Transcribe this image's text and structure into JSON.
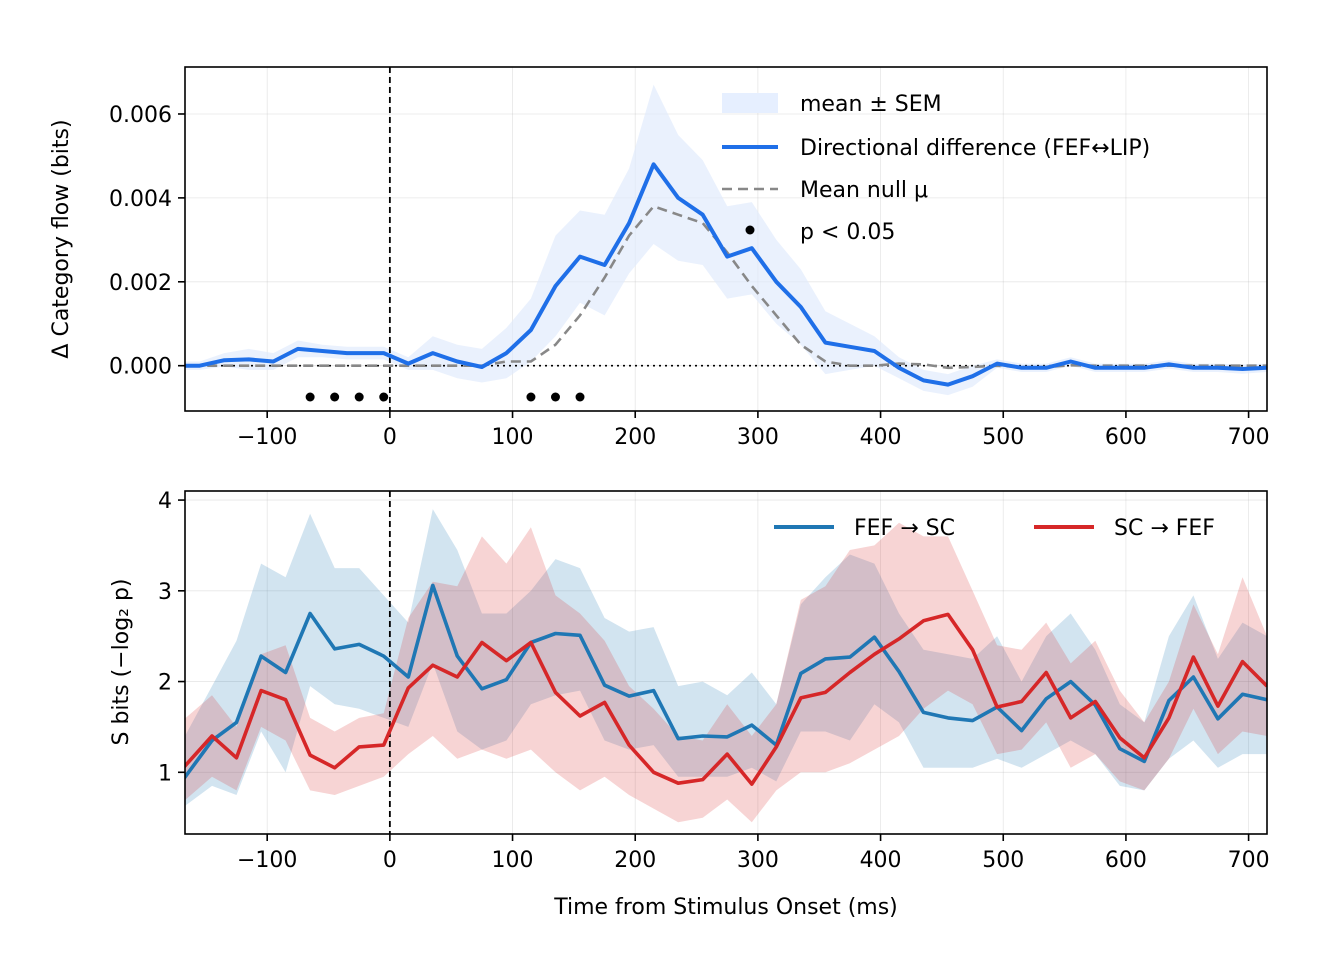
{
  "chart_data": [
    {
      "type": "line",
      "panel": "top",
      "ylabel": "Δ Category flow (bits)",
      "xlabel": "",
      "xlim": [
        -167,
        715
      ],
      "ylim": [
        -0.00108,
        0.00712
      ],
      "xticks": [
        -100,
        0,
        100,
        200,
        300,
        400,
        500,
        600,
        700
      ],
      "xtick_labels": [
        "−100",
        "0",
        "100",
        "200",
        "300",
        "400",
        "500",
        "600",
        "700"
      ],
      "yticks": [
        0,
        0.002,
        0.004,
        0.006
      ],
      "ytick_labels": [
        "0.000",
        "0.002",
        "0.004",
        "0.006"
      ],
      "grid": true,
      "legend_position": "upper-right",
      "x": [
        -175,
        -155,
        -135,
        -115,
        -95,
        -75,
        -55,
        -35,
        -15,
        -5,
        15,
        35,
        55,
        75,
        95,
        115,
        135,
        155,
        175,
        195,
        215,
        235,
        255,
        275,
        295,
        315,
        335,
        355,
        375,
        395,
        415,
        435,
        455,
        475,
        495,
        515,
        535,
        555,
        575,
        595,
        615,
        635,
        655,
        675,
        695,
        715
      ],
      "series": [
        {
          "name": "Directional difference (FEF↔LIP)",
          "role": "mean",
          "color": "#1f6fe8",
          "values": [
            0.0,
            0.0,
            0.00013,
            0.00015,
            0.0001,
            0.0004,
            0.00035,
            0.0003,
            0.0003,
            0.0003,
            5e-05,
            0.0003,
            0.0001,
            -3e-05,
            0.0003,
            0.00085,
            0.0019,
            0.0026,
            0.0024,
            0.0034,
            0.0048,
            0.004,
            0.0036,
            0.0026,
            0.0028,
            0.002,
            0.0014,
            0.00055,
            0.00045,
            0.00035,
            -5e-05,
            -0.00035,
            -0.00045,
            -0.00025,
            5e-05,
            -5e-05,
            -5e-05,
            0.0001,
            -5e-05,
            -5e-05,
            -5e-05,
            3e-05,
            -5e-05,
            -5e-05,
            -8e-05,
            -5e-05
          ]
        },
        {
          "name": "mean ± SEM",
          "role": "band",
          "color": "#deeafc",
          "upper": [
            0.0001,
            0.0001,
            0.0003,
            0.0004,
            0.0003,
            0.0006,
            0.0005,
            0.00045,
            0.00045,
            0.00045,
            0.0002,
            0.0007,
            0.0005,
            0.0004,
            0.0009,
            0.0016,
            0.0031,
            0.0037,
            0.0036,
            0.0047,
            0.0067,
            0.0055,
            0.0049,
            0.0038,
            0.0039,
            0.003,
            0.0023,
            0.0013,
            0.001,
            0.0007,
            0.0002,
            -0.0001,
            -0.0002,
            0.0,
            0.00015,
            5e-05,
            5e-05,
            0.0002,
            5e-05,
            5e-05,
            5e-05,
            0.00013,
            5e-05,
            5e-05,
            3e-05,
            5e-05
          ],
          "lower": [
            -0.0001,
            -0.0001,
            -2e-05,
            -0.0001,
            -0.0001,
            0.0002,
            0.0002,
            0.00015,
            0.00015,
            0.00015,
            -0.0001,
            -0.0001,
            -0.0003,
            -0.0004,
            -0.0003,
            0.0001,
            0.0007,
            0.0015,
            0.0012,
            0.0022,
            0.0029,
            0.0025,
            0.0024,
            0.0016,
            0.0017,
            0.001,
            0.0005,
            -0.0002,
            -0.0001,
            0.0,
            -0.0003,
            -0.0006,
            -0.0007,
            -0.0005,
            -5e-05,
            -0.00015,
            -0.00015,
            0.0,
            -0.00015,
            -0.00015,
            -0.00015,
            -7e-05,
            -0.00015,
            -0.00015,
            -0.00019,
            -0.00015
          ]
        },
        {
          "name": "Mean null μ",
          "role": "null",
          "color": "#888888",
          "values": [
            0,
            0,
            0,
            0,
            0,
            0,
            0,
            0,
            0,
            0,
            0,
            0,
            0,
            0,
            0.0001,
            0.0001,
            0.0005,
            0.0012,
            0.0021,
            0.0031,
            0.0038,
            0.0036,
            0.0034,
            0.0027,
            0.0019,
            0.0012,
            0.0005,
            0.0001,
            0,
            0,
            5e-05,
            3e-05,
            -5e-05,
            -3e-05,
            0.0,
            -3e-05,
            -3e-05,
            1e-05,
            0,
            0,
            0,
            0,
            0,
            0,
            0,
            0
          ]
        }
      ],
      "significant_x": [
        -65,
        -45,
        -25,
        -5,
        115,
        135,
        155
      ],
      "legend_labels": [
        "mean ± SEM",
        "Directional difference (FEF↔LIP)",
        "Mean null μ",
        "p < 0.05"
      ]
    },
    {
      "type": "line",
      "panel": "bottom",
      "ylabel": "S bits (−log₂ p)",
      "xlabel": "Time from Stimulus Onset (ms)",
      "xlim": [
        -167,
        715
      ],
      "ylim": [
        0.32,
        4.1
      ],
      "xticks": [
        -100,
        0,
        100,
        200,
        300,
        400,
        500,
        600,
        700
      ],
      "xtick_labels": [
        "−100",
        "0",
        "100",
        "200",
        "300",
        "400",
        "500",
        "600",
        "700"
      ],
      "yticks": [
        1,
        2,
        3,
        4
      ],
      "ytick_labels": [
        "1",
        "2",
        "3",
        "4"
      ],
      "grid": true,
      "legend_position": "upper-right",
      "x": [
        -175,
        -145,
        -125,
        -105,
        -85,
        -65,
        -45,
        -25,
        -5,
        15,
        35,
        55,
        75,
        95,
        115,
        135,
        155,
        175,
        195,
        215,
        235,
        255,
        275,
        295,
        315,
        335,
        355,
        375,
        395,
        415,
        435,
        455,
        475,
        495,
        515,
        535,
        555,
        575,
        595,
        615,
        635,
        655,
        675,
        695,
        715
      ],
      "series": [
        {
          "name": "FEF → SC",
          "color": "#1f77b4",
          "band_color": "#1f77b4",
          "values": [
            0.8,
            1.35,
            1.55,
            2.28,
            2.1,
            2.75,
            2.36,
            2.41,
            2.28,
            2.05,
            3.06,
            2.28,
            1.92,
            2.02,
            2.43,
            2.53,
            2.51,
            1.96,
            1.84,
            1.9,
            1.37,
            1.4,
            1.39,
            1.52,
            1.3,
            2.09,
            2.25,
            2.27,
            2.49,
            2.11,
            1.66,
            1.6,
            1.57,
            1.72,
            1.46,
            1.81,
            2.0,
            1.74,
            1.26,
            1.12,
            1.79,
            2.05,
            1.59,
            1.86,
            1.8
          ],
          "upper": [
            1.2,
            1.95,
            2.45,
            3.3,
            3.15,
            3.85,
            3.25,
            3.25,
            2.95,
            2.65,
            3.9,
            3.45,
            2.75,
            2.75,
            3.0,
            3.35,
            3.25,
            2.7,
            2.55,
            2.6,
            1.95,
            2.0,
            1.85,
            2.1,
            1.75,
            2.85,
            3.15,
            3.4,
            3.3,
            2.75,
            2.35,
            2.3,
            2.25,
            2.5,
            2.0,
            2.5,
            2.75,
            2.35,
            1.75,
            1.55,
            2.5,
            2.95,
            2.25,
            2.65,
            2.5
          ],
          "lower": [
            0.55,
            0.85,
            0.75,
            1.45,
            1.0,
            1.95,
            1.75,
            1.7,
            1.6,
            1.5,
            2.2,
            1.45,
            1.25,
            1.35,
            1.75,
            1.85,
            1.9,
            1.35,
            1.25,
            1.3,
            0.95,
            0.95,
            0.95,
            1.05,
            0.9,
            1.45,
            1.45,
            1.35,
            1.75,
            1.55,
            1.05,
            1.05,
            1.05,
            1.15,
            1.05,
            1.2,
            1.35,
            1.2,
            0.85,
            0.8,
            1.15,
            1.35,
            1.05,
            1.2,
            1.2
          ]
        },
        {
          "name": "SC → FEF",
          "color": "#d62728",
          "band_color": "#d62728",
          "values": [
            0.95,
            1.4,
            1.16,
            1.9,
            1.8,
            1.19,
            1.05,
            1.28,
            1.3,
            1.93,
            2.18,
            2.05,
            2.43,
            2.23,
            2.43,
            1.88,
            1.62,
            1.77,
            1.3,
            1.0,
            0.88,
            0.92,
            1.2,
            0.87,
            1.28,
            1.82,
            1.88,
            2.1,
            2.3,
            2.47,
            2.67,
            2.74,
            2.35,
            1.72,
            1.78,
            2.1,
            1.6,
            1.78,
            1.38,
            1.16,
            1.6,
            2.27,
            1.73,
            2.22,
            1.95
          ],
          "upper": [
            1.5,
            1.85,
            1.5,
            2.3,
            2.4,
            1.6,
            1.45,
            1.6,
            1.65,
            2.7,
            3.1,
            3.05,
            3.6,
            3.3,
            3.7,
            2.95,
            2.75,
            2.45,
            1.95,
            1.7,
            1.4,
            1.35,
            1.75,
            1.4,
            1.75,
            2.9,
            3.05,
            3.45,
            3.5,
            3.75,
            3.6,
            3.6,
            3.0,
            2.4,
            2.35,
            2.65,
            2.2,
            2.45,
            1.9,
            1.55,
            2.0,
            2.85,
            2.3,
            3.15,
            2.5
          ],
          "lower": [
            0.6,
            0.95,
            0.8,
            1.5,
            1.35,
            0.8,
            0.75,
            0.85,
            0.95,
            1.2,
            1.4,
            1.15,
            1.25,
            1.15,
            1.25,
            1.0,
            0.8,
            0.95,
            0.75,
            0.6,
            0.45,
            0.5,
            0.7,
            0.45,
            0.8,
            1.0,
            1.0,
            1.1,
            1.25,
            1.4,
            1.7,
            1.9,
            1.75,
            1.2,
            1.25,
            1.55,
            1.05,
            1.2,
            0.9,
            0.8,
            1.15,
            1.7,
            1.2,
            1.45,
            1.4
          ]
        }
      ],
      "legend_labels": [
        "FEF → SC",
        "SC → FEF"
      ]
    }
  ]
}
